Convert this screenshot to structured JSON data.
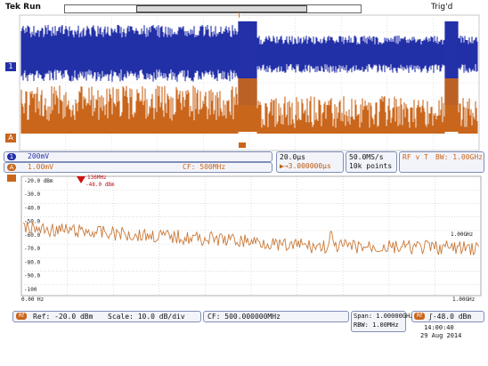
{
  "status": {
    "run_state": "Tek Run",
    "trigger_state": "Trig'd"
  },
  "channels": {
    "ch1": {
      "number": "1",
      "scale": "200mV",
      "color": "#2330a8"
    },
    "ch_a": {
      "letter": "A",
      "scale": "1.00mV",
      "cf": "CF:  500MHz",
      "color": "#c9661c"
    }
  },
  "timebase": {
    "scale": "20.0µs",
    "delay": "▶→3.000000µs"
  },
  "acquisition": {
    "sample_rate": "50.0MS/s",
    "record_length": "10k points"
  },
  "rf_vs_time": {
    "label": "RF v T",
    "bw": "BW: 1.00GHz"
  },
  "spectrum": {
    "y_ticks": [
      "-20.0 dBm",
      "-30.0",
      "-40.0",
      "-50.0",
      "-60.0",
      "-70.0",
      "-80.0",
      "-90.0",
      "-100"
    ],
    "x_start": "0.00 Hz",
    "x_end": "1.00GHz",
    "x_end_top": "1.00GHz",
    "marker_freq": "136MHz",
    "marker_level": "-48.0 dBm",
    "ref": "Ref: -20.0 dBm",
    "scale": "Scale: 10.0 dB/div",
    "cf": "CF:  500.000000MHz",
    "span": "Span:    1.00000GHz",
    "rbw": "RBW:    1.00MHz",
    "trigger_level": "ʃ-48.0 dBm",
    "date": "29 Aug 2014",
    "time": "14:00:40",
    "rf_badge": "Rf"
  },
  "markers": {
    "ch1": "1",
    "a": "A",
    "rf": "Rf",
    "trig_level": "T"
  },
  "colors": {
    "ch1": "#2330a8",
    "rf_time": "#c9661c",
    "spectrum": "#c97a3a",
    "panel_border": "#7f8fb8"
  }
}
